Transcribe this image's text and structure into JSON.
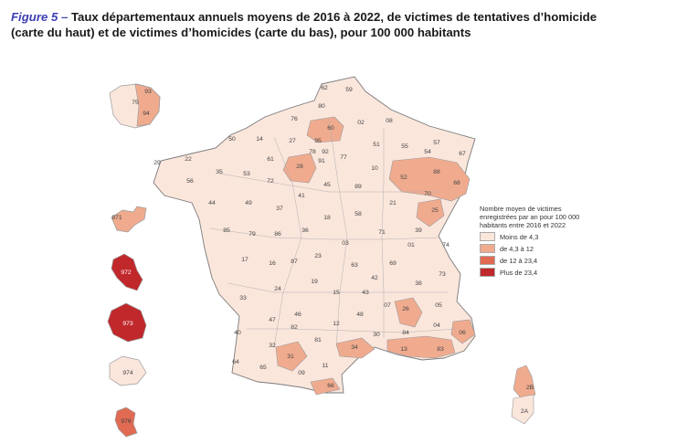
{
  "caption": {
    "figure_label": "Figure 5 –",
    "text_line1": " Taux départementaux annuels moyens de 2016 à 2022, de victimes de tentatives d’homicide",
    "text_line2": "(carte du haut) et de victimes d’homicides (carte du bas), pour 100 000 habitants"
  },
  "legend": {
    "title": "Nombre moyen de victimes enregistrées par an pour 100 000 habitants entre 2016 et 2022",
    "classes": [
      {
        "label": "Moins de 4,3",
        "color": "#fbe6dc"
      },
      {
        "label": "de 4,3 à 12",
        "color": "#f0ab8f"
      },
      {
        "label": "de 12 à 23,4",
        "color": "#e06a52"
      },
      {
        "label": "Plus de 23,4",
        "color": "#c0282b"
      }
    ]
  },
  "departments": [
    {
      "code": "62",
      "cls": 0
    },
    {
      "code": "59",
      "cls": 0
    },
    {
      "code": "80",
      "cls": 0
    },
    {
      "code": "60",
      "cls": 1
    },
    {
      "code": "02",
      "cls": 0
    },
    {
      "code": "08",
      "cls": 0
    },
    {
      "code": "76",
      "cls": 0
    },
    {
      "code": "50",
      "cls": 0
    },
    {
      "code": "14",
      "cls": 0
    },
    {
      "code": "27",
      "cls": 0
    },
    {
      "code": "95",
      "cls": 1
    },
    {
      "code": "78",
      "cls": 0
    },
    {
      "code": "92",
      "cls": 1
    },
    {
      "code": "77",
      "cls": 0
    },
    {
      "code": "91",
      "cls": 0
    },
    {
      "code": "51",
      "cls": 0
    },
    {
      "code": "55",
      "cls": 0
    },
    {
      "code": "57",
      "cls": 0
    },
    {
      "code": "67",
      "cls": 0
    },
    {
      "code": "54",
      "cls": 0
    },
    {
      "code": "22",
      "cls": 0
    },
    {
      "code": "29",
      "cls": 0
    },
    {
      "code": "35",
      "cls": 0
    },
    {
      "code": "53",
      "cls": 0
    },
    {
      "code": "61",
      "cls": 0
    },
    {
      "code": "28",
      "cls": 1
    },
    {
      "code": "72",
      "cls": 0
    },
    {
      "code": "45",
      "cls": 0
    },
    {
      "code": "10",
      "cls": 0
    },
    {
      "code": "52",
      "cls": 1
    },
    {
      "code": "88",
      "cls": 1
    },
    {
      "code": "68",
      "cls": 1
    },
    {
      "code": "56",
      "cls": 0
    },
    {
      "code": "44",
      "cls": 0
    },
    {
      "code": "49",
      "cls": 0
    },
    {
      "code": "41",
      "cls": 0
    },
    {
      "code": "89",
      "cls": 0
    },
    {
      "code": "70",
      "cls": 0
    },
    {
      "code": "21",
      "cls": 0
    },
    {
      "code": "37",
      "cls": 0
    },
    {
      "code": "18",
      "cls": 0
    },
    {
      "code": "58",
      "cls": 0
    },
    {
      "code": "25",
      "cls": 1
    },
    {
      "code": "36",
      "cls": 0
    },
    {
      "code": "85",
      "cls": 0
    },
    {
      "code": "79",
      "cls": 0
    },
    {
      "code": "86",
      "cls": 0
    },
    {
      "code": "71",
      "cls": 0
    },
    {
      "code": "39",
      "cls": 0
    },
    {
      "code": "03",
      "cls": 0
    },
    {
      "code": "01",
      "cls": 0
    },
    {
      "code": "74",
      "cls": 0
    },
    {
      "code": "17",
      "cls": 0
    },
    {
      "code": "87",
      "cls": 0
    },
    {
      "code": "23",
      "cls": 0
    },
    {
      "code": "63",
      "cls": 0
    },
    {
      "code": "69",
      "cls": 0
    },
    {
      "code": "73",
      "cls": 0
    },
    {
      "code": "38",
      "cls": 0
    },
    {
      "code": "42",
      "cls": 0
    },
    {
      "code": "16",
      "cls": 0
    },
    {
      "code": "19",
      "cls": 0
    },
    {
      "code": "15",
      "cls": 0
    },
    {
      "code": "43",
      "cls": 0
    },
    {
      "code": "33",
      "cls": 0
    },
    {
      "code": "24",
      "cls": 0
    },
    {
      "code": "46",
      "cls": 0
    },
    {
      "code": "07",
      "cls": 0
    },
    {
      "code": "26",
      "cls": 1
    },
    {
      "code": "05",
      "cls": 0
    },
    {
      "code": "48",
      "cls": 0
    },
    {
      "code": "12",
      "cls": 0
    },
    {
      "code": "04",
      "cls": 0
    },
    {
      "code": "06",
      "cls": 1
    },
    {
      "code": "47",
      "cls": 0
    },
    {
      "code": "82",
      "cls": 0
    },
    {
      "code": "81",
      "cls": 0
    },
    {
      "code": "30",
      "cls": 0
    },
    {
      "code": "84",
      "cls": 0
    },
    {
      "code": "40",
      "cls": 0
    },
    {
      "code": "32",
      "cls": 0
    },
    {
      "code": "31",
      "cls": 1
    },
    {
      "code": "34",
      "cls": 1
    },
    {
      "code": "13",
      "cls": 1
    },
    {
      "code": "83",
      "cls": 1
    },
    {
      "code": "64",
      "cls": 0
    },
    {
      "code": "65",
      "cls": 0
    },
    {
      "code": "09",
      "cls": 0
    },
    {
      "code": "11",
      "cls": 0
    },
    {
      "code": "66",
      "cls": 1
    },
    {
      "code": "2B",
      "cls": 1
    },
    {
      "code": "2A",
      "cls": 0
    }
  ],
  "overseas": [
    {
      "code": "75",
      "cls": 0
    },
    {
      "code": "93",
      "cls": 1
    },
    {
      "code": "94",
      "cls": 1
    },
    {
      "code": "971",
      "cls": 2
    },
    {
      "code": "972",
      "cls": 3
    },
    {
      "code": "973",
      "cls": 3
    },
    {
      "code": "974",
      "cls": 0
    },
    {
      "code": "976",
      "cls": 2
    }
  ]
}
